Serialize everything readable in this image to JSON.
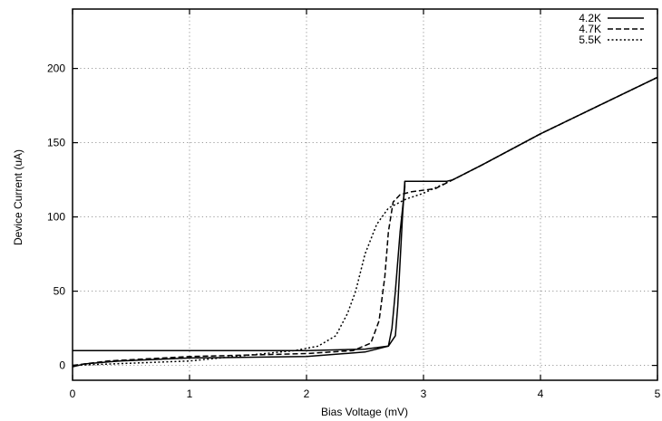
{
  "chart_data": {
    "type": "line",
    "xlabel": "Bias Voltage (mV)",
    "ylabel": "Device Current (uA)",
    "xlim": [
      0,
      5
    ],
    "ylim": [
      -10,
      240
    ],
    "xticks": [
      0,
      1,
      2,
      3,
      4,
      5
    ],
    "yticks": [
      0,
      50,
      100,
      150,
      200
    ],
    "grid": true,
    "legend": "top-right",
    "series": [
      {
        "name": "4.2K",
        "style": "solid",
        "points": [
          [
            0,
            10
          ],
          [
            1,
            10
          ],
          [
            2,
            10
          ],
          [
            2.5,
            11
          ],
          [
            2.7,
            13
          ],
          [
            2.76,
            20
          ],
          [
            2.78,
            40
          ],
          [
            2.8,
            70
          ],
          [
            2.82,
            100
          ],
          [
            2.84,
            124
          ],
          [
            3.2,
            124
          ],
          [
            3.25,
            125
          ],
          [
            3.5,
            135
          ],
          [
            4,
            156
          ],
          [
            4.5,
            175
          ],
          [
            5,
            194
          ]
        ],
        "return_points": [
          [
            2.84,
            124
          ],
          [
            2.84,
            120
          ],
          [
            2.8,
            90
          ],
          [
            2.76,
            50
          ],
          [
            2.73,
            25
          ],
          [
            2.7,
            13
          ],
          [
            2.5,
            9
          ],
          [
            2,
            6
          ],
          [
            1,
            5
          ],
          [
            0.4,
            3
          ],
          [
            0.1,
            1
          ],
          [
            0,
            -1
          ]
        ]
      },
      {
        "name": "4.7K",
        "style": "dashed",
        "points": [
          [
            0,
            0
          ],
          [
            0.3,
            3
          ],
          [
            1,
            6
          ],
          [
            2,
            8
          ],
          [
            2.4,
            10
          ],
          [
            2.55,
            15
          ],
          [
            2.62,
            30
          ],
          [
            2.67,
            60
          ],
          [
            2.7,
            90
          ],
          [
            2.74,
            110
          ],
          [
            2.8,
            115
          ],
          [
            2.9,
            117
          ],
          [
            3.1,
            119
          ],
          [
            3.25,
            125
          ],
          [
            3.5,
            135
          ],
          [
            4,
            156
          ],
          [
            4.5,
            175
          ],
          [
            5,
            194
          ]
        ]
      },
      {
        "name": "5.5K",
        "style": "dotted",
        "points": [
          [
            0,
            0
          ],
          [
            1,
            3
          ],
          [
            1.9,
            10
          ],
          [
            2.1,
            13
          ],
          [
            2.25,
            20
          ],
          [
            2.35,
            35
          ],
          [
            2.42,
            50
          ],
          [
            2.5,
            75
          ],
          [
            2.6,
            95
          ],
          [
            2.7,
            106
          ],
          [
            2.85,
            112
          ],
          [
            3,
            116
          ],
          [
            3.25,
            125
          ],
          [
            3.5,
            135
          ],
          [
            4,
            156
          ],
          [
            4.5,
            175
          ],
          [
            5,
            194
          ]
        ]
      }
    ]
  }
}
